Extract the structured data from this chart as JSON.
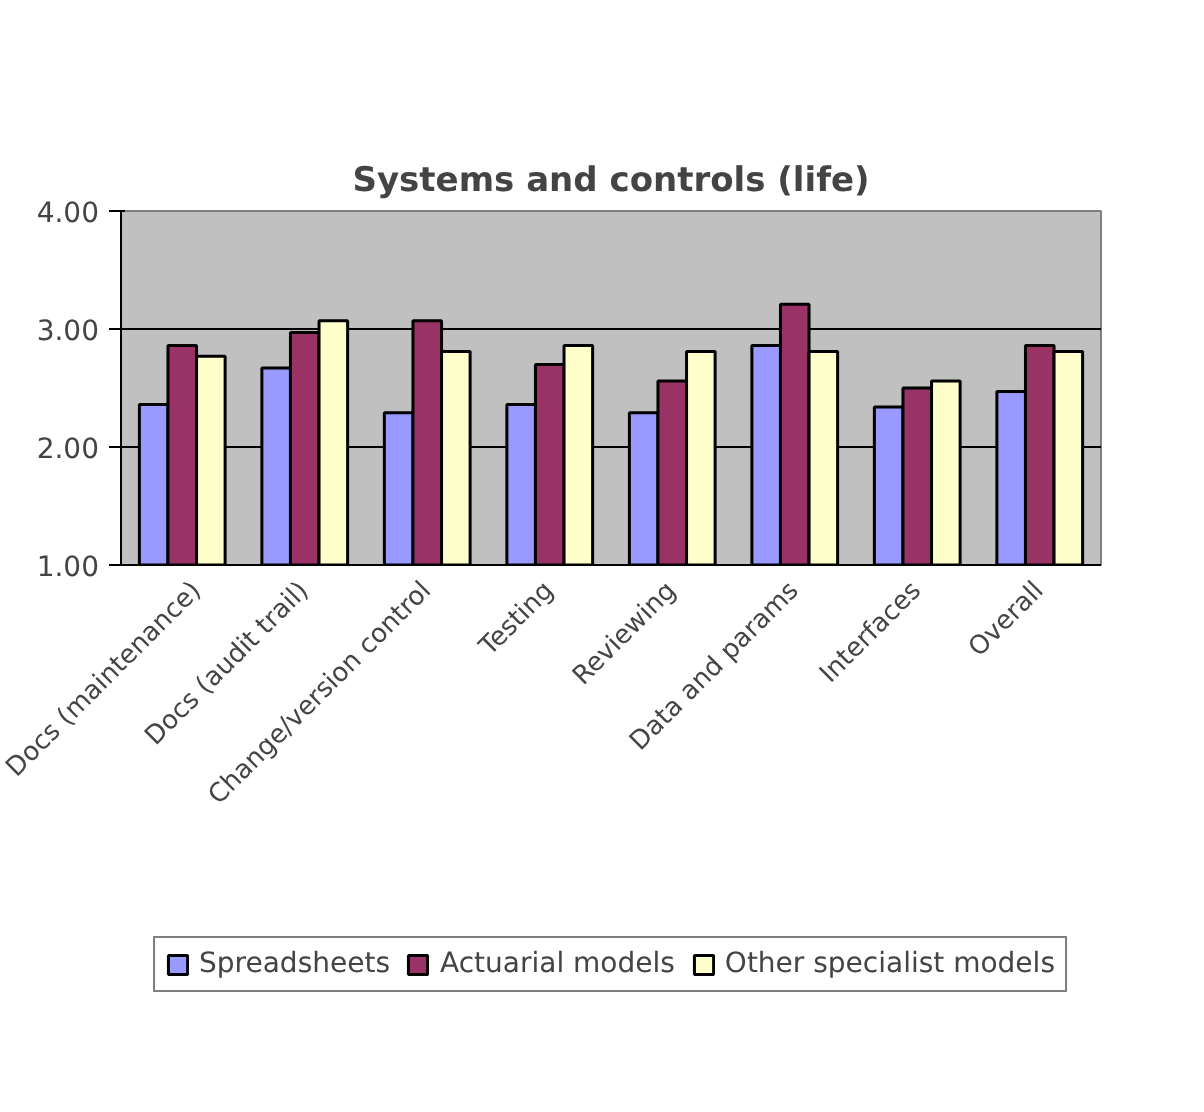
{
  "chart_data": {
    "type": "bar",
    "title": "Systems and controls (life)",
    "categories": [
      "Docs (maintenance)",
      "Docs (audit trail)",
      "Change/version control",
      "Testing",
      "Reviewing",
      "Data and params",
      "Interfaces",
      "Overall"
    ],
    "series": [
      {
        "name": "Spreadsheets",
        "color": "#9999ff",
        "values": [
          2.36,
          2.67,
          2.29,
          2.36,
          2.29,
          2.86,
          2.34,
          2.47
        ]
      },
      {
        "name": "Actuarial models",
        "color": "#993366",
        "values": [
          2.86,
          2.97,
          3.07,
          2.7,
          2.56,
          3.21,
          2.5,
          2.86
        ]
      },
      {
        "name": "Other specialist models",
        "color": "#ffffcc",
        "values": [
          2.77,
          3.07,
          2.81,
          2.86,
          2.81,
          2.81,
          2.56,
          2.81
        ]
      }
    ],
    "ylim": [
      1,
      4
    ],
    "yticks": [
      {
        "value": 1,
        "label": "1.00"
      },
      {
        "value": 2,
        "label": "2.00"
      },
      {
        "value": 3,
        "label": "3.00"
      },
      {
        "value": 4,
        "label": "4.00"
      }
    ],
    "grid": "y",
    "legend": "bottom"
  }
}
